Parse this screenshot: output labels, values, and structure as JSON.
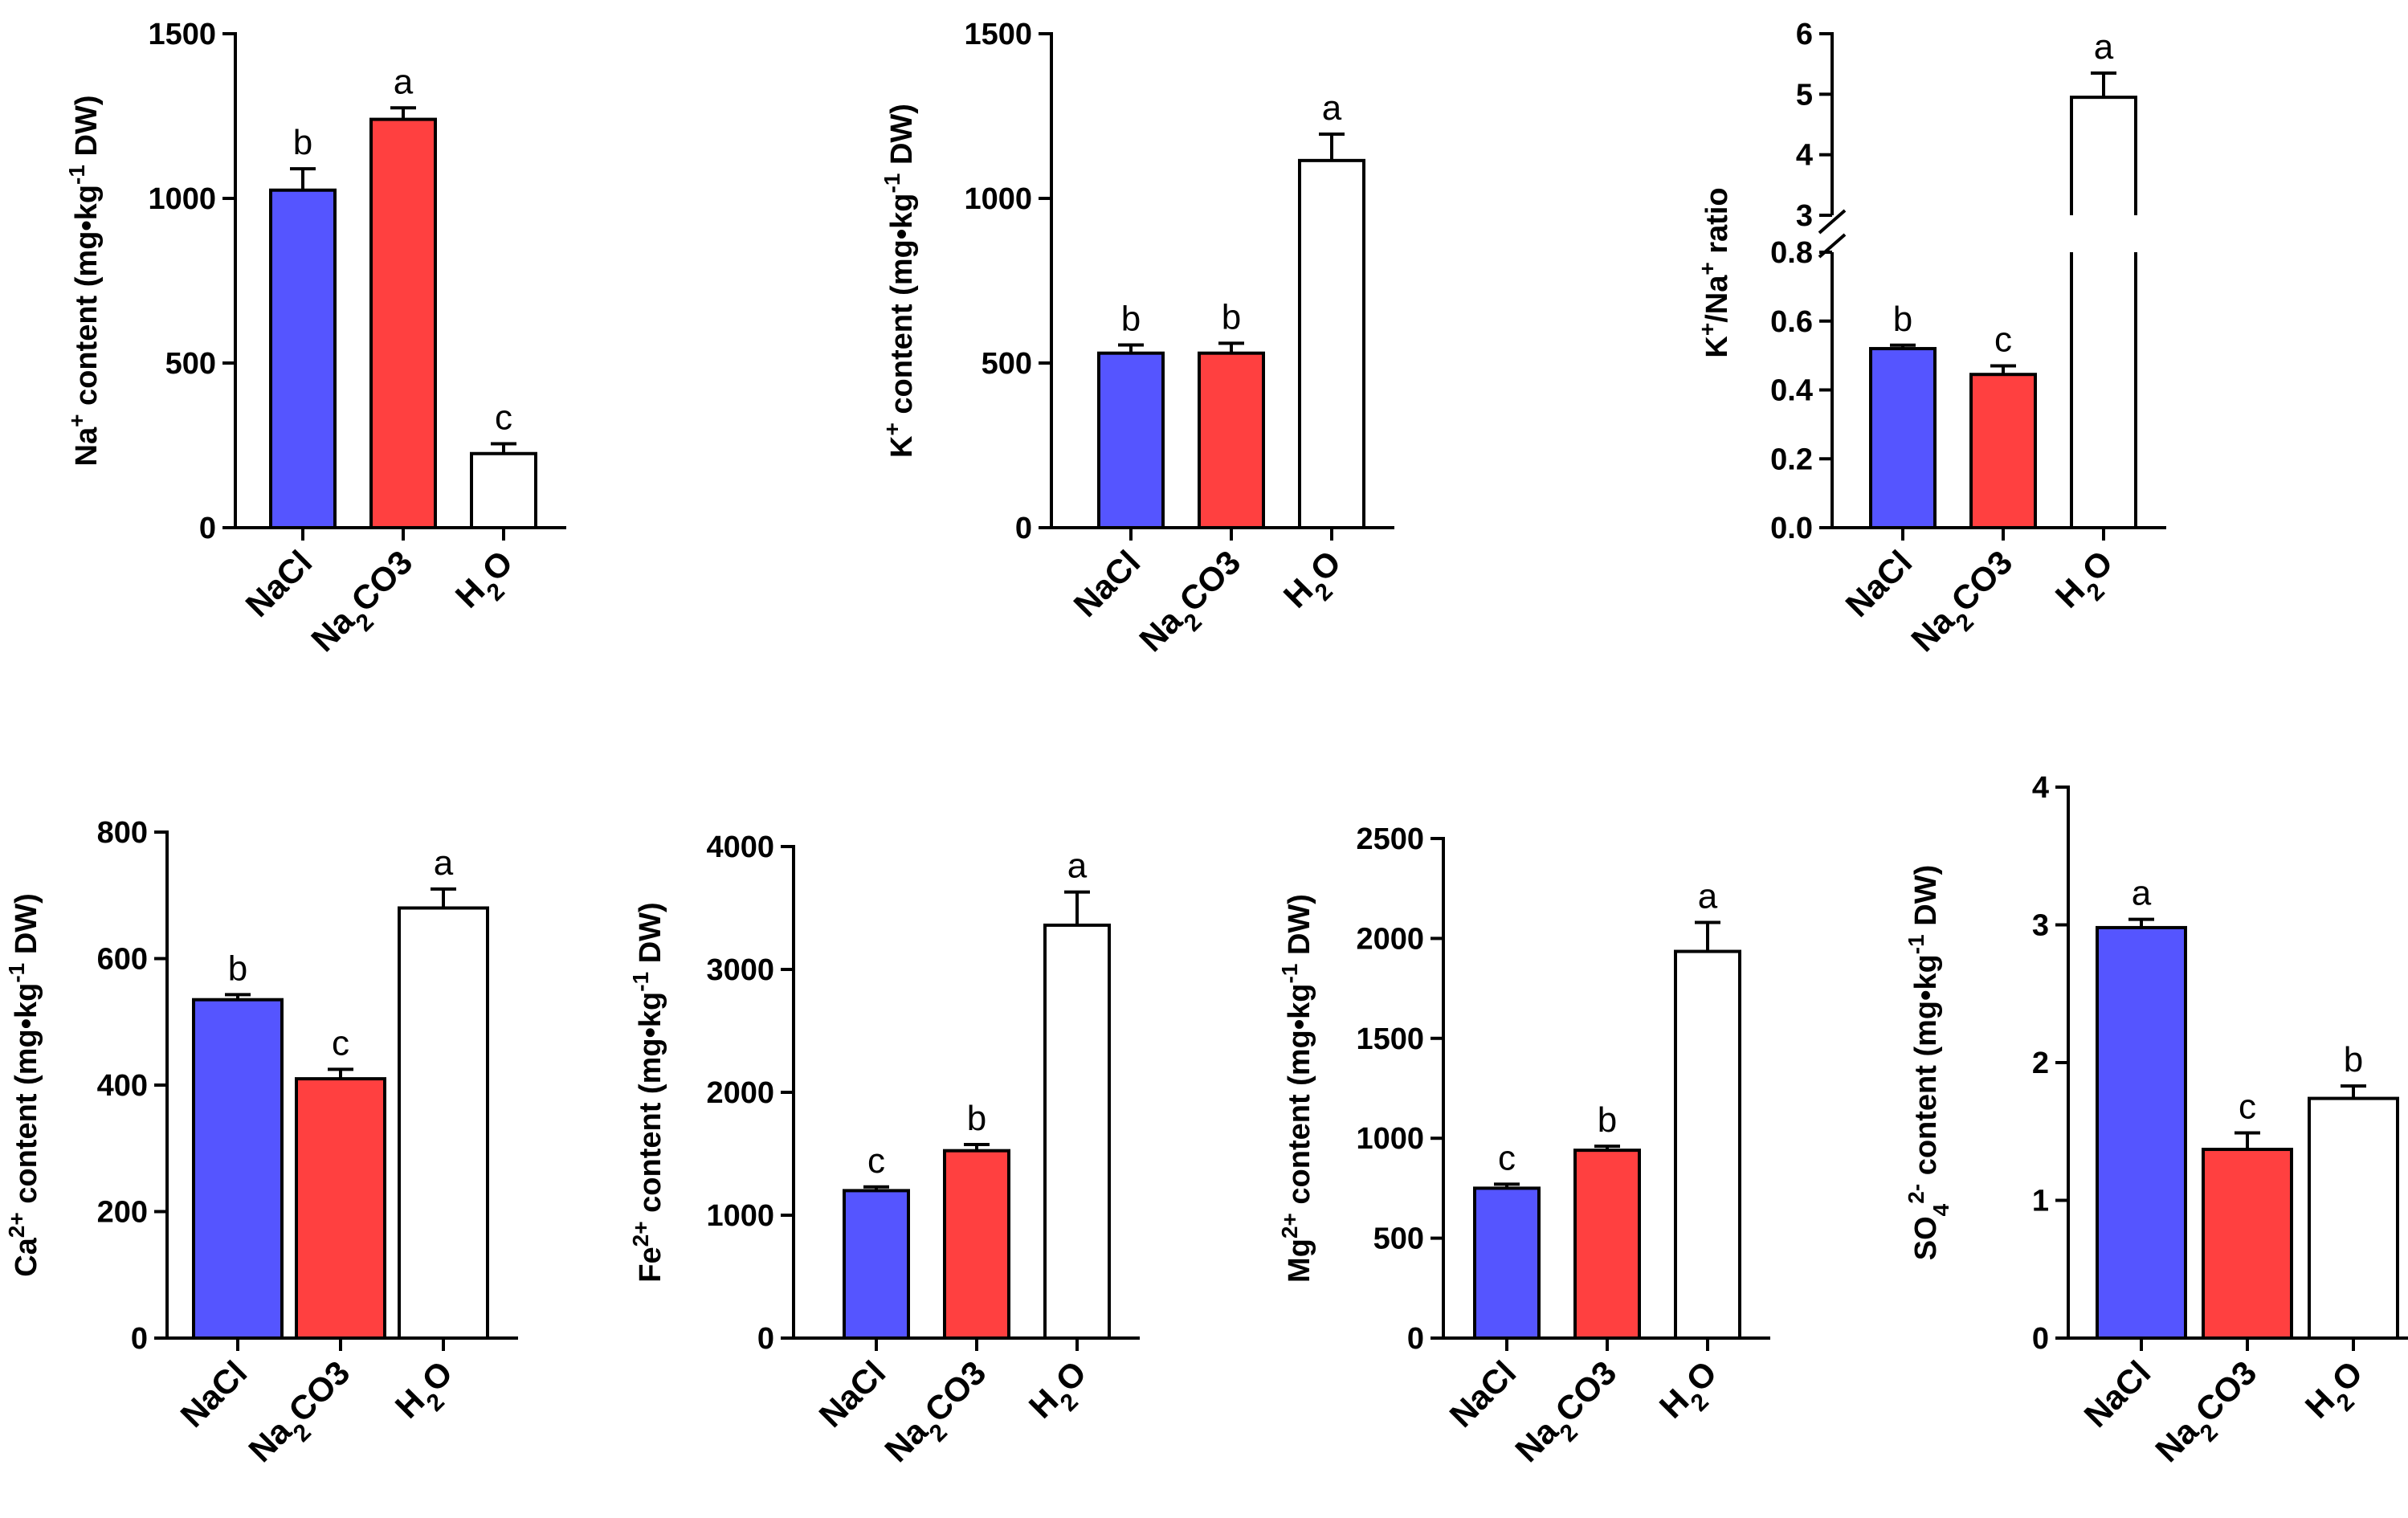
{
  "colors": {
    "NaCl": "#5555ff",
    "Na2CO3": "#ff4040",
    "H2O": "#ffffff",
    "axis": "#000000"
  },
  "chart_data": [
    {
      "id": "na",
      "type": "bar",
      "ylabel": {
        "pre": "Na",
        "sup1": "+",
        "mid": " content (mg•kg",
        "sup2": "-1",
        "post": " DW)"
      },
      "categories": [
        "NaCl",
        "Na2CO3",
        "H2O"
      ],
      "values": [
        1025,
        1240,
        225
      ],
      "errors": [
        65,
        35,
        30
      ],
      "letters": [
        "b",
        "a",
        "c"
      ],
      "ylim": [
        0,
        1500
      ],
      "ticks": [
        0,
        500,
        1000,
        1500
      ],
      "tick_labels": [
        "0",
        "500",
        "1000",
        "1500"
      ]
    },
    {
      "id": "k",
      "type": "bar",
      "ylabel": {
        "pre": "K",
        "sup1": "+",
        "mid": " content (mg•kg",
        "sup2": "-1",
        "post": " DW)"
      },
      "categories": [
        "NaCl",
        "Na2CO3",
        "H2O"
      ],
      "values": [
        530,
        530,
        1115
      ],
      "errors": [
        25,
        30,
        80
      ],
      "letters": [
        "b",
        "b",
        "a"
      ],
      "ylim": [
        0,
        1500
      ],
      "ticks": [
        0,
        500,
        1000,
        1500
      ],
      "tick_labels": [
        "0",
        "500",
        "1000",
        "1500"
      ]
    },
    {
      "id": "ratio",
      "type": "bar",
      "broken_axis": true,
      "ylabel": {
        "pre": "K",
        "sup1": "+",
        "mid": "/Na",
        "sup2": "+",
        "post": " ratio"
      },
      "categories": [
        "NaCl",
        "Na2CO3",
        "H2O"
      ],
      "values": [
        0.52,
        0.445,
        4.95
      ],
      "errors": [
        0.01,
        0.025,
        0.4
      ],
      "letters": [
        "b",
        "c",
        "a"
      ],
      "lower_range": [
        0,
        0.8
      ],
      "lower_ticks": [
        0,
        0.2,
        0.4,
        0.6,
        0.8
      ],
      "lower_tick_labels": [
        "0.0",
        "0.2",
        "0.4",
        "0.6",
        "0.8"
      ],
      "upper_range": [
        3,
        6
      ],
      "upper_ticks": [
        3,
        4,
        5,
        6
      ],
      "upper_tick_labels": [
        "3",
        "4",
        "5",
        "6"
      ]
    },
    {
      "id": "ca",
      "type": "bar",
      "ylabel": {
        "pre": "Ca",
        "sup1": "2+",
        "mid": " content (mg•kg",
        "sup2": "-1",
        "post": " DW)"
      },
      "categories": [
        "NaCl",
        "Na2CO3",
        "H2O"
      ],
      "values": [
        535,
        410,
        680
      ],
      "errors": [
        8,
        15,
        30
      ],
      "letters": [
        "b",
        "c",
        "a"
      ],
      "ylim": [
        0,
        800
      ],
      "ticks": [
        0,
        200,
        400,
        600,
        800
      ],
      "tick_labels": [
        "0",
        "200",
        "400",
        "600",
        "800"
      ]
    },
    {
      "id": "fe",
      "type": "bar",
      "ylabel": {
        "pre": "Fe",
        "sup1": "2+",
        "mid": " content (mg•kg",
        "sup2": "-1",
        "post": " DW)"
      },
      "categories": [
        "NaCl",
        "Na2CO3",
        "H2O"
      ],
      "values": [
        1200,
        1525,
        3360
      ],
      "errors": [
        30,
        50,
        270
      ],
      "letters": [
        "c",
        "b",
        "a"
      ],
      "ylim": [
        0,
        4000
      ],
      "ticks": [
        0,
        1000,
        2000,
        3000,
        4000
      ],
      "tick_labels": [
        "0",
        "1000",
        "2000",
        "3000",
        "4000"
      ]
    },
    {
      "id": "mg",
      "type": "bar",
      "ylabel": {
        "pre": "Mg",
        "sup1": "2+",
        "mid": " content (mg•kg",
        "sup2": "-1",
        "post": " DW)"
      },
      "categories": [
        "NaCl",
        "Na2CO3",
        "H2O"
      ],
      "values": [
        750,
        940,
        1935
      ],
      "errors": [
        20,
        20,
        145
      ],
      "letters": [
        "c",
        "b",
        "a"
      ],
      "ylim": [
        0,
        2500
      ],
      "ticks": [
        0,
        500,
        1000,
        1500,
        2000,
        2500
      ],
      "tick_labels": [
        "0",
        "500",
        "1000",
        "1500",
        "2000",
        "2500"
      ]
    },
    {
      "id": "so4",
      "type": "bar",
      "ylabel": {
        "pre": "SO",
        "sub": "4",
        "sup1": "2-",
        "mid": " content (mg•kg",
        "sup2": "-1",
        "post": " DW)"
      },
      "categories": [
        "NaCl",
        "Na2CO3",
        "H2O"
      ],
      "values": [
        2.98,
        1.37,
        1.74
      ],
      "errors": [
        0.06,
        0.12,
        0.09
      ],
      "letters": [
        "a",
        "c",
        "b"
      ],
      "ylim": [
        0,
        4
      ],
      "ticks": [
        0,
        1,
        2,
        3,
        4
      ],
      "tick_labels": [
        "0",
        "1",
        "2",
        "3",
        "4"
      ]
    }
  ]
}
